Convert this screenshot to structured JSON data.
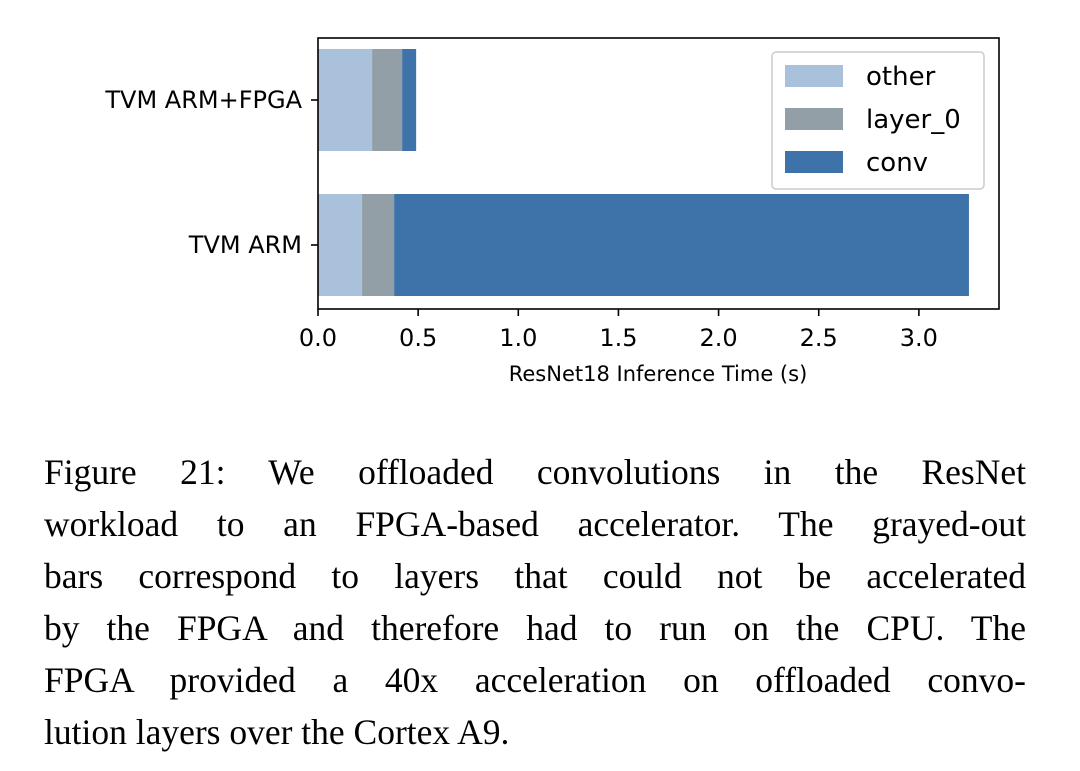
{
  "chart_data": {
    "type": "bar",
    "orientation": "horizontal",
    "stacked": true,
    "categories": [
      "TVM ARM+FPGA",
      "TVM ARM"
    ],
    "series": [
      {
        "name": "other",
        "values": [
          0.27,
          0.22
        ],
        "color": "#aac1dc"
      },
      {
        "name": "layer_0",
        "values": [
          0.15,
          0.16
        ],
        "color": "#939fa7"
      },
      {
        "name": "conv",
        "values": [
          0.07,
          2.87
        ],
        "color": "#3e73aa"
      }
    ],
    "xlabel": "ResNet18 Inference Time (s)",
    "ylabel": "",
    "xlim": [
      0,
      3.4
    ],
    "xticks": [
      "0.0",
      "0.5",
      "1.0",
      "1.5",
      "2.0",
      "2.5",
      "3.0"
    ],
    "xtick_values": [
      0,
      0.5,
      1.0,
      1.5,
      2.0,
      2.5,
      3.0
    ],
    "legend": {
      "placement": "top-right",
      "entries": [
        "other",
        "layer_0",
        "conv"
      ]
    },
    "grid": false
  },
  "caption": {
    "lines": [
      "Figure 21: We offloaded convolutions in the ResNet",
      "workload to an FPGA-based accelerator. The grayed-out",
      "bars correspond to layers that could not be accelerated",
      "by the FPGA and therefore had to run on the CPU. The",
      "FPGA provided a 40x acceleration on offloaded convo-",
      "lution layers over the Cortex A9."
    ]
  }
}
